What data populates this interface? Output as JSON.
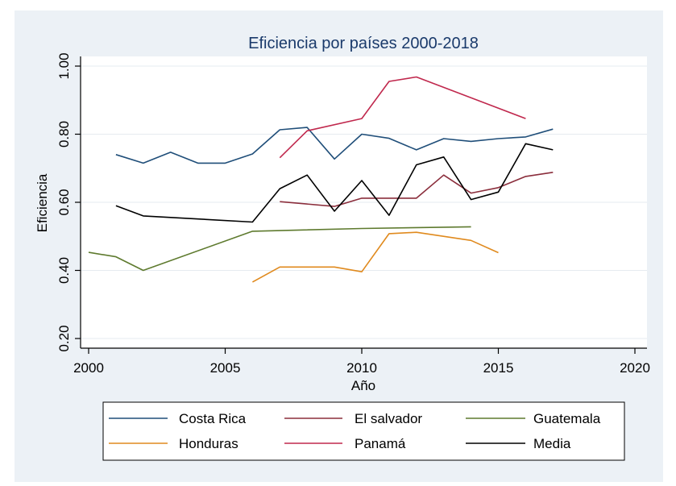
{
  "chart_data": {
    "type": "line",
    "title": "Eficiencia por países 2000-2018",
    "xlabel": "Año",
    "ylabel": "Eficiencia",
    "xlim": [
      2000,
      2020
    ],
    "ylim": [
      0.2,
      1.0
    ],
    "x_ticks": [
      "2000",
      "2005",
      "2010",
      "2015",
      "2020"
    ],
    "y_ticks": [
      "0.20",
      "0.40",
      "0.60",
      "0.80",
      "1.00"
    ],
    "grid": true,
    "legend": "bottom",
    "series": [
      {
        "name": "Costa Rica",
        "color": "#1f4e79",
        "x": [
          2001,
          2002,
          2003,
          2004,
          2005,
          2006,
          2007,
          2008,
          2009,
          2010,
          2011,
          2012,
          2013,
          2014,
          2015,
          2016,
          2017
        ],
        "y": [
          0.74,
          0.715,
          0.747,
          0.715,
          0.715,
          0.742,
          0.813,
          0.82,
          0.727,
          0.8,
          0.788,
          0.754,
          0.787,
          0.779,
          0.787,
          0.792,
          0.815
        ]
      },
      {
        "name": "El salvador",
        "color": "#8b2e3c",
        "x": [
          2007,
          2009,
          2010,
          2012,
          2013,
          2014,
          2015,
          2016,
          2017
        ],
        "y": [
          0.602,
          0.588,
          0.612,
          0.612,
          0.68,
          0.627,
          0.643,
          0.676,
          0.688
        ]
      },
      {
        "name": "Guatemala",
        "color": "#5e7a2e",
        "x": [
          2000,
          2001,
          2002,
          2006,
          2010,
          2014
        ],
        "y": [
          0.453,
          0.44,
          0.4,
          0.515,
          0.523,
          0.528
        ]
      },
      {
        "name": "Honduras",
        "color": "#e08a1e",
        "x": [
          2006,
          2007,
          2009,
          2010,
          2011,
          2012,
          2014,
          2015
        ],
        "y": [
          0.366,
          0.41,
          0.41,
          0.396,
          0.508,
          0.512,
          0.488,
          0.452
        ]
      },
      {
        "name": "Panamá",
        "color": "#c0284d",
        "x": [
          2007,
          2008,
          2010,
          2011,
          2012,
          2016
        ],
        "y": [
          0.731,
          0.81,
          0.846,
          0.955,
          0.968,
          0.846
        ]
      },
      {
        "name": "Media",
        "color": "#000000",
        "x": [
          2001,
          2002,
          2006,
          2007,
          2008,
          2009,
          2010,
          2011,
          2012,
          2013,
          2014,
          2015,
          2016,
          2017
        ],
        "y": [
          0.59,
          0.56,
          0.542,
          0.64,
          0.68,
          0.574,
          0.664,
          0.562,
          0.71,
          0.733,
          0.608,
          0.63,
          0.772,
          0.754
        ]
      }
    ]
  }
}
